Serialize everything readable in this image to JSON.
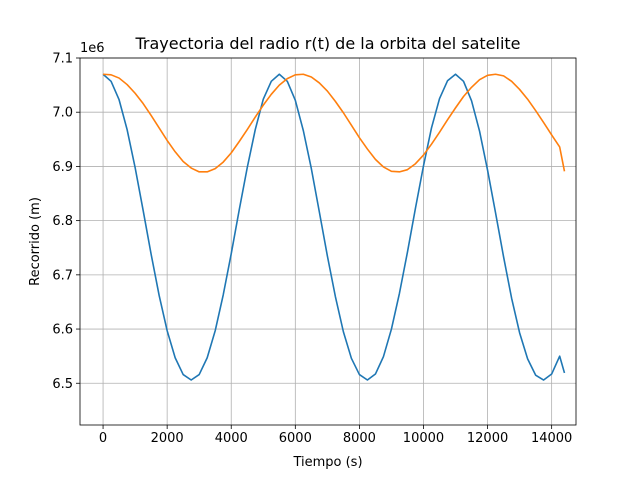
{
  "chart_data": {
    "type": "line",
    "title": "Trayectoria del radio r(t) de la orbita del satelite",
    "xlabel": "Tiempo (s)",
    "ylabel": "Recorrido (m)",
    "y_offset_label": "1e6",
    "xlim": [
      -720,
      14760
    ],
    "ylim": [
      6.423,
      7.1
    ],
    "x_ticks": [
      0,
      2000,
      4000,
      6000,
      8000,
      10000,
      12000,
      14000
    ],
    "x_tick_labels": [
      "0",
      "2000",
      "4000",
      "6000",
      "8000",
      "10000",
      "12000",
      "14000"
    ],
    "y_ticks": [
      6.5,
      6.6,
      6.7,
      6.8,
      6.9,
      7.0,
      7.1
    ],
    "y_tick_labels": [
      "6.5",
      "6.6",
      "6.7",
      "6.8",
      "6.9",
      "7.0",
      "7.1"
    ],
    "grid": true,
    "series": [
      {
        "color": "#1f77b4",
        "x": [
          0,
          250,
          500,
          750,
          1000,
          1250,
          1500,
          1750,
          2000,
          2250,
          2500,
          2750,
          3000,
          3250,
          3500,
          3750,
          4000,
          4250,
          4500,
          4750,
          5000,
          5250,
          5500,
          5750,
          6000,
          6250,
          6500,
          6750,
          7000,
          7250,
          7500,
          7750,
          8000,
          8250,
          8500,
          8750,
          9000,
          9250,
          9500,
          9750,
          10000,
          10250,
          10500,
          10750,
          11000,
          11250,
          11500,
          11750,
          12000,
          12250,
          12500,
          12750,
          13000,
          13250,
          13500,
          13750,
          14000,
          14250,
          14400
        ],
        "values": [
          7.07,
          7.057,
          7.023,
          6.968,
          6.898,
          6.819,
          6.738,
          6.662,
          6.597,
          6.547,
          6.516,
          6.506,
          6.516,
          6.547,
          6.597,
          6.663,
          6.739,
          6.82,
          6.898,
          6.968,
          7.024,
          7.057,
          7.07,
          7.057,
          7.022,
          6.966,
          6.896,
          6.816,
          6.735,
          6.66,
          6.595,
          6.546,
          6.516,
          6.506,
          6.517,
          6.549,
          6.6,
          6.666,
          6.742,
          6.823,
          6.901,
          6.971,
          7.025,
          7.058,
          7.07,
          7.057,
          7.021,
          6.965,
          6.893,
          6.814,
          6.733,
          6.657,
          6.593,
          6.545,
          6.515,
          6.506,
          6.517,
          6.55,
          6.519
        ]
      },
      {
        "color": "#ff7f0e",
        "x": [
          0,
          250,
          500,
          750,
          1000,
          1250,
          1500,
          1750,
          2000,
          2250,
          2500,
          2750,
          3000,
          3250,
          3500,
          3750,
          4000,
          4250,
          4500,
          4750,
          5000,
          5250,
          5500,
          5750,
          6000,
          6250,
          6500,
          6750,
          7000,
          7250,
          7500,
          7750,
          8000,
          8250,
          8500,
          8750,
          9000,
          9250,
          9500,
          9750,
          10000,
          10250,
          10500,
          10750,
          11000,
          11250,
          11500,
          11750,
          12000,
          12250,
          12500,
          12750,
          13000,
          13250,
          13500,
          13750,
          14000,
          14250,
          14400
        ],
        "values": [
          7.07,
          7.069,
          7.063,
          7.051,
          7.035,
          7.016,
          6.994,
          6.971,
          6.948,
          6.927,
          6.909,
          6.897,
          6.89,
          6.89,
          6.896,
          6.908,
          6.925,
          6.946,
          6.968,
          6.991,
          7.013,
          7.033,
          7.05,
          7.062,
          7.069,
          7.07,
          7.065,
          7.054,
          7.039,
          7.02,
          6.999,
          6.976,
          6.953,
          6.932,
          6.913,
          6.899,
          6.891,
          6.89,
          6.894,
          6.905,
          6.921,
          6.941,
          6.963,
          6.986,
          7.008,
          7.029,
          7.046,
          7.06,
          7.068,
          7.07,
          7.067,
          7.057,
          7.042,
          7.024,
          7.003,
          6.981,
          6.958,
          6.936,
          6.891
        ]
      }
    ]
  }
}
